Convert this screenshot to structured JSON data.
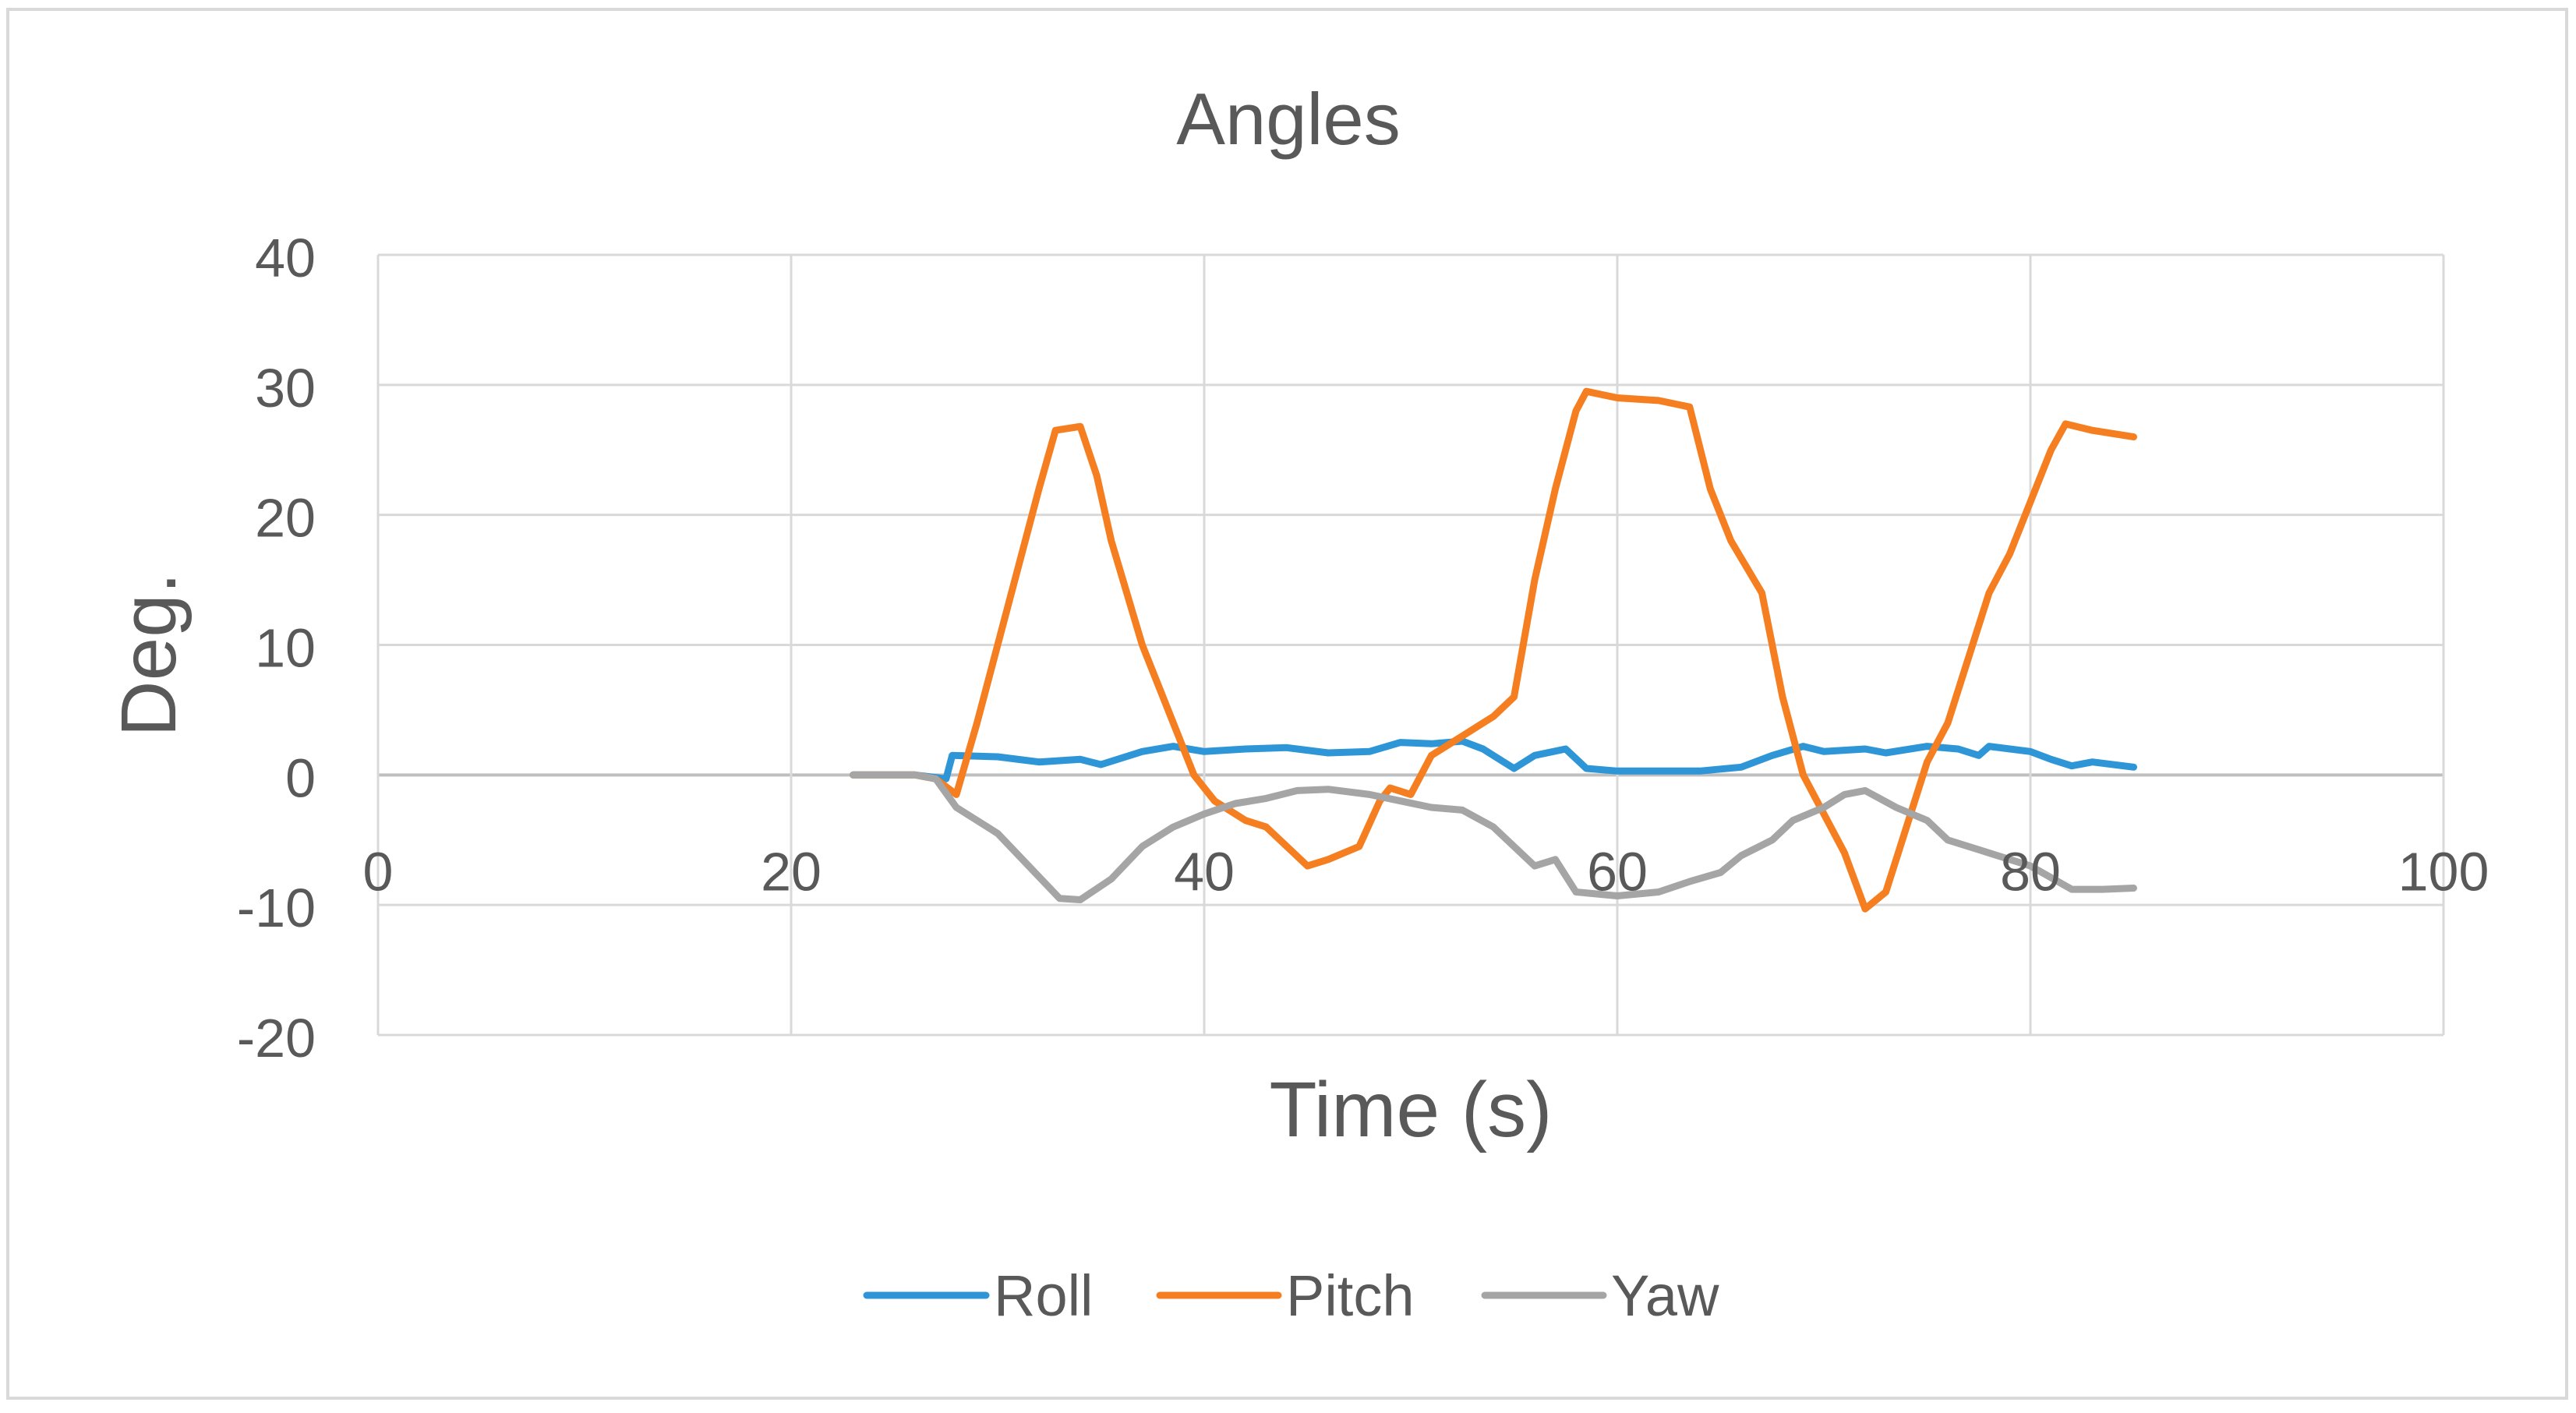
{
  "chart_data": {
    "type": "line",
    "title": "Angles",
    "xlabel": "Time (s)",
    "ylabel": "Deg.",
    "xlim": [
      0,
      100
    ],
    "ylim": [
      -20,
      40
    ],
    "x_ticks": [
      "0",
      "20",
      "40",
      "60",
      "80",
      "100"
    ],
    "y_ticks": [
      "40",
      "30",
      "20",
      "10",
      "0",
      "-10",
      "-20"
    ],
    "grid": true,
    "legend_position": "bottom",
    "series": [
      {
        "name": "Roll",
        "color": "#2E96D6",
        "points": [
          [
            23,
            0
          ],
          [
            26,
            0
          ],
          [
            27.5,
            -0.3
          ],
          [
            27.8,
            1.5
          ],
          [
            30,
            1.4
          ],
          [
            32,
            1.0
          ],
          [
            34,
            1.2
          ],
          [
            35,
            0.8
          ],
          [
            37,
            1.8
          ],
          [
            38.5,
            2.2
          ],
          [
            40,
            1.8
          ],
          [
            42,
            2.0
          ],
          [
            44,
            2.1
          ],
          [
            46,
            1.7
          ],
          [
            48,
            1.8
          ],
          [
            49.5,
            2.5
          ],
          [
            51,
            2.4
          ],
          [
            52.5,
            2.6
          ],
          [
            53.5,
            2.0
          ],
          [
            55,
            0.5
          ],
          [
            56,
            1.5
          ],
          [
            57.5,
            2.0
          ],
          [
            58.5,
            0.5
          ],
          [
            60,
            0.3
          ],
          [
            62,
            0.3
          ],
          [
            64,
            0.3
          ],
          [
            66,
            0.6
          ],
          [
            67.5,
            1.5
          ],
          [
            69,
            2.2
          ],
          [
            70,
            1.8
          ],
          [
            72,
            2.0
          ],
          [
            73,
            1.7
          ],
          [
            75,
            2.2
          ],
          [
            76.5,
            2.0
          ],
          [
            77.5,
            1.5
          ],
          [
            78,
            2.2
          ],
          [
            80,
            1.8
          ],
          [
            81,
            1.2
          ],
          [
            82,
            0.7
          ],
          [
            83,
            1.0
          ],
          [
            85,
            0.6
          ]
        ]
      },
      {
        "name": "Pitch",
        "color": "#F57E20",
        "points": [
          [
            23,
            0
          ],
          [
            26,
            0
          ],
          [
            27,
            -0.3
          ],
          [
            28,
            -1.5
          ],
          [
            29,
            4
          ],
          [
            30,
            10
          ],
          [
            31,
            16
          ],
          [
            32,
            22
          ],
          [
            32.8,
            26.5
          ],
          [
            34,
            26.8
          ],
          [
            34.8,
            23
          ],
          [
            35.5,
            18
          ],
          [
            37,
            10
          ],
          [
            38.5,
            4
          ],
          [
            39.5,
            0
          ],
          [
            40.5,
            -2
          ],
          [
            42,
            -3.5
          ],
          [
            43,
            -4
          ],
          [
            44,
            -5.5
          ],
          [
            45,
            -7
          ],
          [
            46,
            -6.5
          ],
          [
            47.5,
            -5.5
          ],
          [
            48.5,
            -2
          ],
          [
            49,
            -1
          ],
          [
            50,
            -1.5
          ],
          [
            51,
            1.5
          ],
          [
            52.5,
            3
          ],
          [
            54,
            4.5
          ],
          [
            55,
            6
          ],
          [
            56,
            15
          ],
          [
            57,
            22
          ],
          [
            58,
            28
          ],
          [
            58.5,
            29.5
          ],
          [
            60,
            29
          ],
          [
            62,
            28.8
          ],
          [
            63.5,
            28.3
          ],
          [
            64.5,
            22
          ],
          [
            65.5,
            18
          ],
          [
            67,
            14
          ],
          [
            68,
            6
          ],
          [
            69,
            0
          ],
          [
            70,
            -3
          ],
          [
            71,
            -6
          ],
          [
            72,
            -10.3
          ],
          [
            73,
            -9
          ],
          [
            74,
            -4
          ],
          [
            75,
            1
          ],
          [
            76,
            4
          ],
          [
            77,
            9
          ],
          [
            78,
            14
          ],
          [
            79,
            17
          ],
          [
            80,
            21
          ],
          [
            81,
            25
          ],
          [
            81.7,
            27
          ],
          [
            83,
            26.5
          ],
          [
            85,
            26
          ]
        ]
      },
      {
        "name": "Yaw",
        "color": "#A5A5A5",
        "points": [
          [
            23,
            0
          ],
          [
            26,
            0
          ],
          [
            27,
            -0.3
          ],
          [
            28,
            -2.5
          ],
          [
            30,
            -4.5
          ],
          [
            31.5,
            -7
          ],
          [
            33,
            -9.5
          ],
          [
            34,
            -9.6
          ],
          [
            35.5,
            -8
          ],
          [
            37,
            -5.5
          ],
          [
            38.5,
            -4
          ],
          [
            40,
            -3
          ],
          [
            41.5,
            -2.2
          ],
          [
            43,
            -1.8
          ],
          [
            44.5,
            -1.2
          ],
          [
            46,
            -1.1
          ],
          [
            48,
            -1.5
          ],
          [
            49.5,
            -2.0
          ],
          [
            51,
            -2.5
          ],
          [
            52.5,
            -2.7
          ],
          [
            54,
            -4
          ],
          [
            55,
            -5.5
          ],
          [
            56,
            -7
          ],
          [
            57,
            -6.5
          ],
          [
            58,
            -9.0
          ],
          [
            60,
            -9.3
          ],
          [
            62,
            -9.0
          ],
          [
            63.5,
            -8.2
          ],
          [
            65,
            -7.5
          ],
          [
            66,
            -6.2
          ],
          [
            67.5,
            -5
          ],
          [
            68.5,
            -3.5
          ],
          [
            70,
            -2.5
          ],
          [
            71,
            -1.5
          ],
          [
            72,
            -1.2
          ],
          [
            73.5,
            -2.5
          ],
          [
            75,
            -3.5
          ],
          [
            76,
            -5
          ],
          [
            78,
            -6
          ],
          [
            80,
            -7
          ],
          [
            82,
            -8.8
          ],
          [
            83.5,
            -8.8
          ],
          [
            85,
            -8.7
          ]
        ]
      }
    ]
  }
}
